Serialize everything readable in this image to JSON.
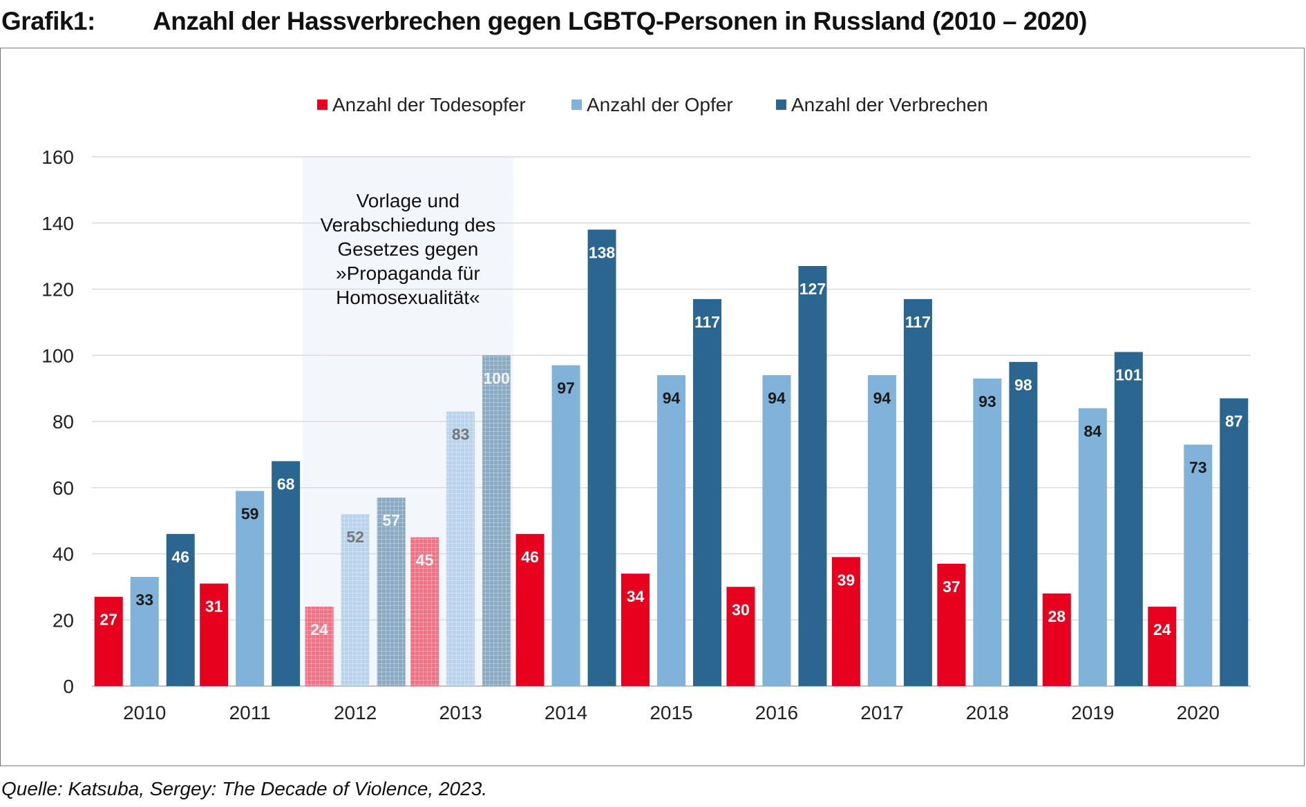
{
  "figure_label": "Grafik1:",
  "source": "Quelle: Katsuba, Sergey: The Decade of Violence, 2023.",
  "chart_data": {
    "type": "bar",
    "title": "Anzahl der Hassverbrechen gegen LGBTQ-Personen in Russland (2010 – 2020)",
    "xlabel": "",
    "ylabel": "",
    "ylim": [
      0,
      160
    ],
    "yticks": [
      0,
      20,
      40,
      60,
      80,
      100,
      120,
      140,
      160
    ],
    "grid": true,
    "legend_position": "top",
    "categories": [
      "2010",
      "2011",
      "2012",
      "2013",
      "2014",
      "2015",
      "2016",
      "2017",
      "2018",
      "2019",
      "2020"
    ],
    "series": [
      {
        "name": "Anzahl der Todesopfer",
        "color": "#E8001F",
        "label_color": "#ffffff",
        "values": [
          27,
          31,
          24,
          45,
          46,
          34,
          30,
          39,
          37,
          28,
          24
        ]
      },
      {
        "name": "Anzahl der Opfer",
        "color": "#80B2DA",
        "label_color": "#1a1a1a",
        "values": [
          33,
          59,
          52,
          83,
          97,
          94,
          94,
          94,
          93,
          84,
          73
        ]
      },
      {
        "name": "Anzahl der Verbrechen",
        "color": "#2B6691",
        "label_color": "#ffffff",
        "values": [
          46,
          68,
          57,
          100,
          138,
          117,
          127,
          117,
          98,
          101,
          87
        ]
      }
    ],
    "hatched_categories": [
      "2012",
      "2013"
    ],
    "annotation": {
      "text_lines": [
        "Vorlage und",
        "Verabschiedung des",
        "Gesetzes gegen",
        "»Propaganda für",
        "Homosexualität«"
      ],
      "span": [
        "2012",
        "2013"
      ]
    }
  }
}
